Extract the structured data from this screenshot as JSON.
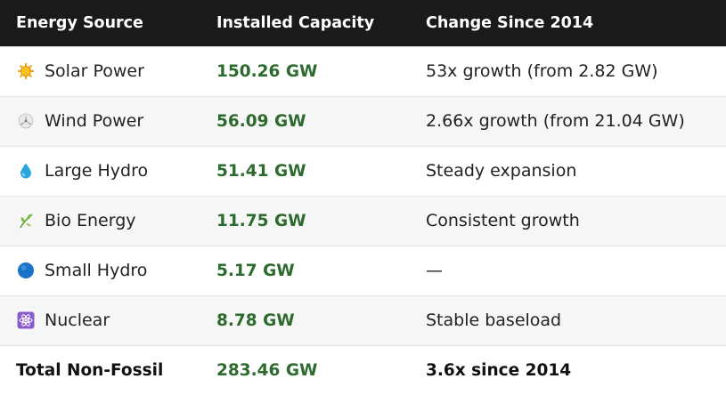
{
  "headers": [
    "Energy Source",
    "Installed Capacity",
    "Change Since 2014"
  ],
  "rows": [
    {
      "icon": "sun-icon",
      "source": "Solar Power",
      "capacity": "150.26 GW",
      "change": "53x growth (from 2.82 GW)"
    },
    {
      "icon": "wind-turbine-icon",
      "source": "Wind Power",
      "capacity": "56.09 GW",
      "change": "2.66x growth (from 21.04 GW)"
    },
    {
      "icon": "droplet-icon",
      "source": "Large Hydro",
      "capacity": "51.41 GW",
      "change": "Steady expansion"
    },
    {
      "icon": "leaf-icon",
      "source": "Bio Energy",
      "capacity": "11.75 GW",
      "change": "Consistent growth"
    },
    {
      "icon": "blue-circle-icon",
      "source": "Small Hydro",
      "capacity": "5.17 GW",
      "change": "—"
    },
    {
      "icon": "atom-icon",
      "source": "Nuclear",
      "capacity": "8.78 GW",
      "change": "Stable baseload"
    }
  ],
  "total": {
    "label": "Total Non-Fossil",
    "capacity": "283.46 GW",
    "change": "3.6x since 2014"
  },
  "colors": {
    "header_bg": "#1a1a1a",
    "capacity_text": "#2d6a2d",
    "alt_row_bg": "#f6f6f6"
  }
}
